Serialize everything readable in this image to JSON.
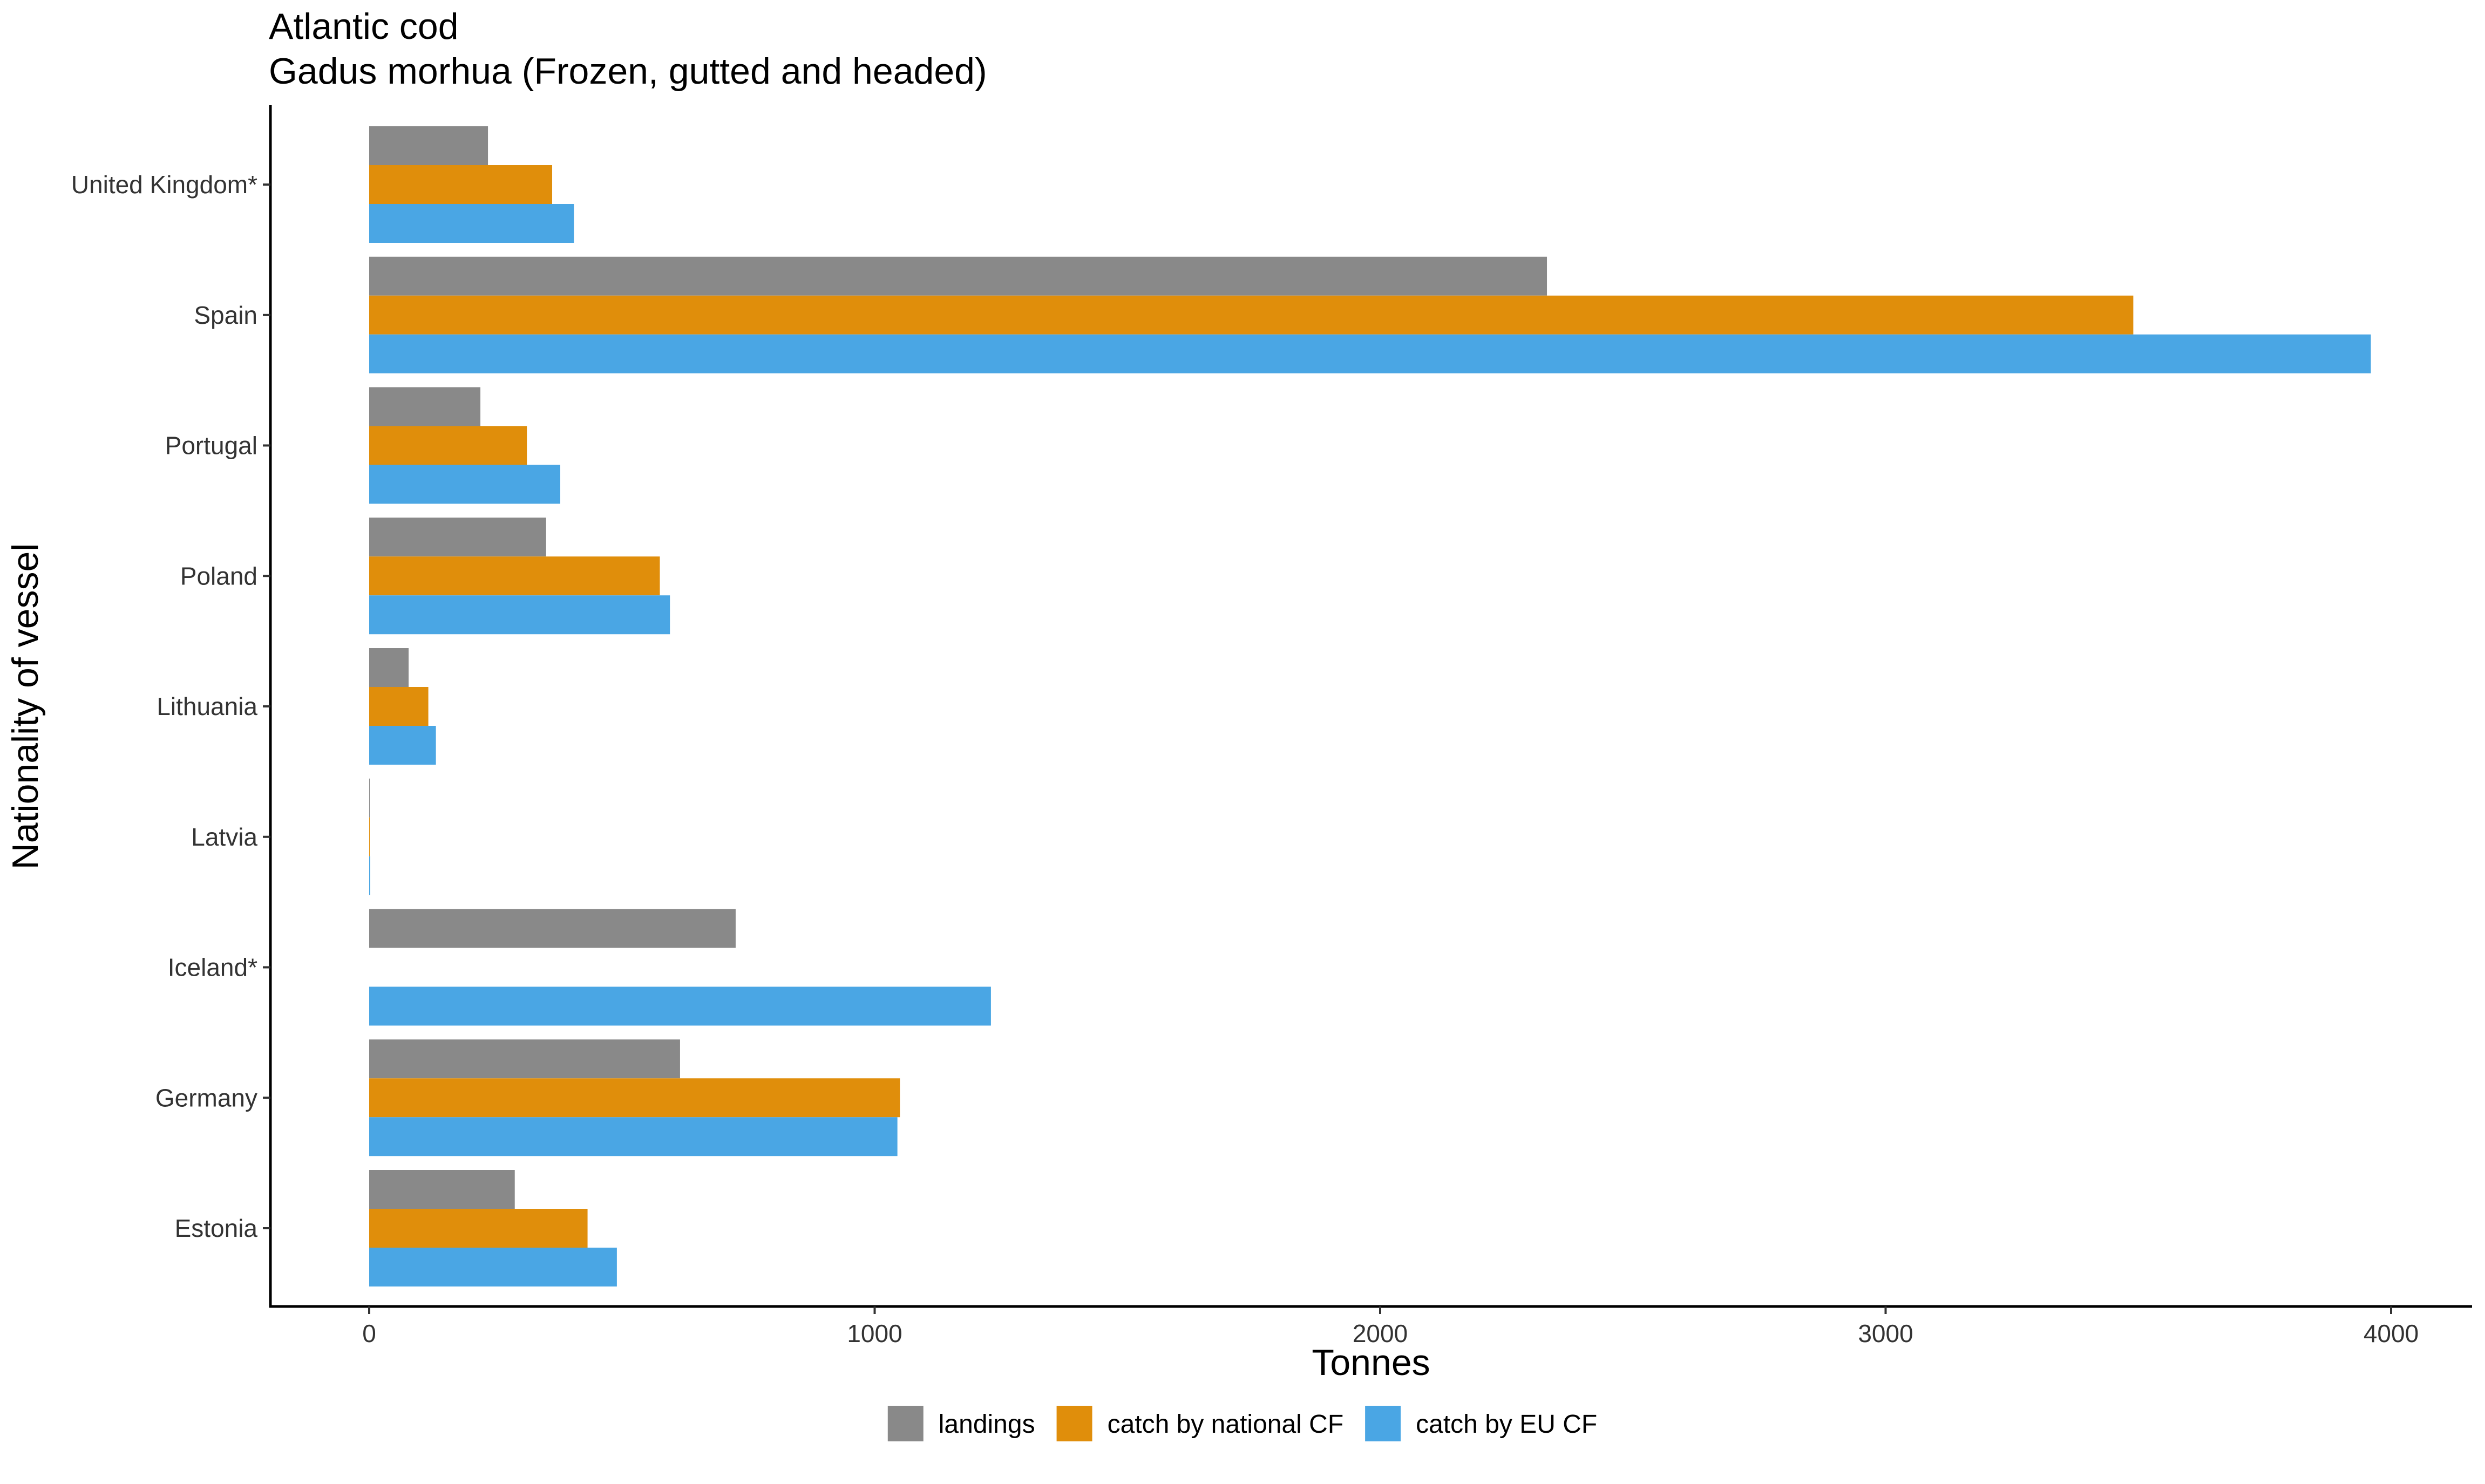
{
  "chart_data": {
    "type": "bar",
    "orientation": "horizontal",
    "title": "Atlantic cod",
    "subtitle": "Gadus morhua (Frozen, gutted and headed)",
    "xlabel": "Tonnes",
    "ylabel": "Nationality of vessel",
    "xlim": [
      -200,
      4160
    ],
    "xticks": [
      0,
      1000,
      2000,
      3000,
      4000
    ],
    "xtick_labels": [
      "0",
      "1000",
      "2000",
      "3000",
      "4000"
    ],
    "grid": false,
    "legend_position": "bottom",
    "categories": [
      "United Kingdom*",
      "Spain",
      "Portugal",
      "Poland",
      "Lithuania",
      "Latvia",
      "Iceland*",
      "Germany",
      "Estonia"
    ],
    "series": [
      {
        "name": "landings",
        "color": "#898989",
        "values": [
          235,
          2330,
          220,
          350,
          78,
          0,
          725,
          615,
          288
        ]
      },
      {
        "name": "catch by national CF",
        "color": "#E08E0B",
        "values": [
          362,
          3490,
          312,
          575,
          117,
          0,
          null,
          1050,
          432
        ]
      },
      {
        "name": "catch by EU CF",
        "color": "#4AA6E4",
        "values": [
          405,
          3960,
          378,
          595,
          132,
          2,
          1230,
          1045,
          490
        ]
      }
    ]
  }
}
